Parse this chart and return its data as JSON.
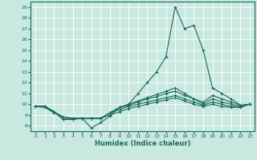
{
  "xlabel": "Humidex (Indice chaleur)",
  "ylabel": "",
  "xlim": [
    -0.5,
    23.5
  ],
  "ylim": [
    7.5,
    19.5
  ],
  "yticks": [
    8,
    9,
    10,
    11,
    12,
    13,
    14,
    15,
    16,
    17,
    18,
    19
  ],
  "xticks": [
    0,
    1,
    2,
    3,
    4,
    5,
    6,
    7,
    8,
    9,
    10,
    11,
    12,
    13,
    14,
    15,
    16,
    17,
    18,
    19,
    20,
    21,
    22,
    23
  ],
  "bg_color": "#c8e8e0",
  "grid_color": "#b0d8d0",
  "line_color": "#1a6b5a",
  "lines": [
    {
      "x": [
        0,
        1,
        2,
        3,
        4,
        5,
        6,
        7,
        8,
        9,
        10,
        11,
        12,
        13,
        14,
        15,
        16,
        17,
        18,
        19,
        20,
        21,
        22,
        23
      ],
      "y": [
        9.8,
        9.8,
        9.3,
        8.6,
        8.6,
        8.7,
        7.8,
        8.3,
        8.9,
        9.7,
        10.0,
        11.0,
        12.0,
        13.0,
        14.4,
        19.0,
        17.0,
        17.3,
        15.0,
        11.5,
        11.0,
        10.5,
        9.9,
        10.0
      ]
    },
    {
      "x": [
        0,
        1,
        2,
        3,
        4,
        5,
        6,
        7,
        8,
        9,
        10,
        11,
        12,
        13,
        14,
        15,
        16,
        17,
        18,
        19,
        20,
        21,
        22,
        23
      ],
      "y": [
        9.8,
        9.8,
        9.3,
        8.6,
        8.6,
        8.7,
        8.7,
        8.7,
        9.2,
        9.7,
        10.0,
        10.3,
        10.6,
        10.9,
        11.2,
        11.5,
        11.0,
        10.5,
        10.2,
        10.8,
        10.5,
        10.2,
        9.9,
        10.0
      ]
    },
    {
      "x": [
        0,
        1,
        2,
        3,
        4,
        5,
        6,
        7,
        8,
        9,
        10,
        11,
        12,
        13,
        14,
        15,
        16,
        17,
        18,
        19,
        20,
        21,
        22,
        23
      ],
      "y": [
        9.8,
        9.8,
        9.3,
        8.6,
        8.6,
        8.7,
        8.7,
        8.7,
        9.2,
        9.7,
        9.9,
        10.2,
        10.5,
        10.7,
        11.0,
        11.2,
        10.8,
        10.5,
        10.0,
        10.5,
        10.2,
        10.0,
        9.8,
        10.0
      ]
    },
    {
      "x": [
        0,
        1,
        2,
        3,
        4,
        5,
        6,
        7,
        8,
        9,
        10,
        11,
        12,
        13,
        14,
        15,
        16,
        17,
        18,
        19,
        20,
        21,
        22,
        23
      ],
      "y": [
        9.8,
        9.8,
        9.3,
        8.8,
        8.7,
        8.7,
        8.7,
        8.7,
        9.2,
        9.5,
        9.8,
        10.0,
        10.2,
        10.4,
        10.6,
        10.8,
        10.5,
        10.2,
        9.9,
        10.2,
        10.0,
        9.8,
        9.8,
        10.0
      ]
    },
    {
      "x": [
        0,
        1,
        2,
        3,
        4,
        5,
        6,
        7,
        8,
        9,
        10,
        11,
        12,
        13,
        14,
        15,
        16,
        17,
        18,
        19,
        20,
        21,
        22,
        23
      ],
      "y": [
        9.8,
        9.7,
        9.2,
        8.8,
        8.7,
        8.7,
        8.7,
        8.7,
        9.0,
        9.3,
        9.6,
        9.8,
        10.0,
        10.2,
        10.4,
        10.6,
        10.3,
        10.0,
        9.8,
        10.0,
        9.8,
        9.7,
        9.7,
        10.0
      ]
    }
  ]
}
